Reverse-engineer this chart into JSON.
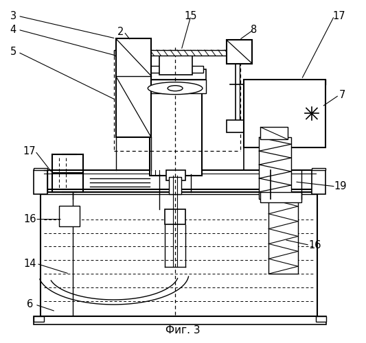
{
  "title": "Фиг. 3",
  "bg": "#ffffff",
  "lc": "#000000"
}
